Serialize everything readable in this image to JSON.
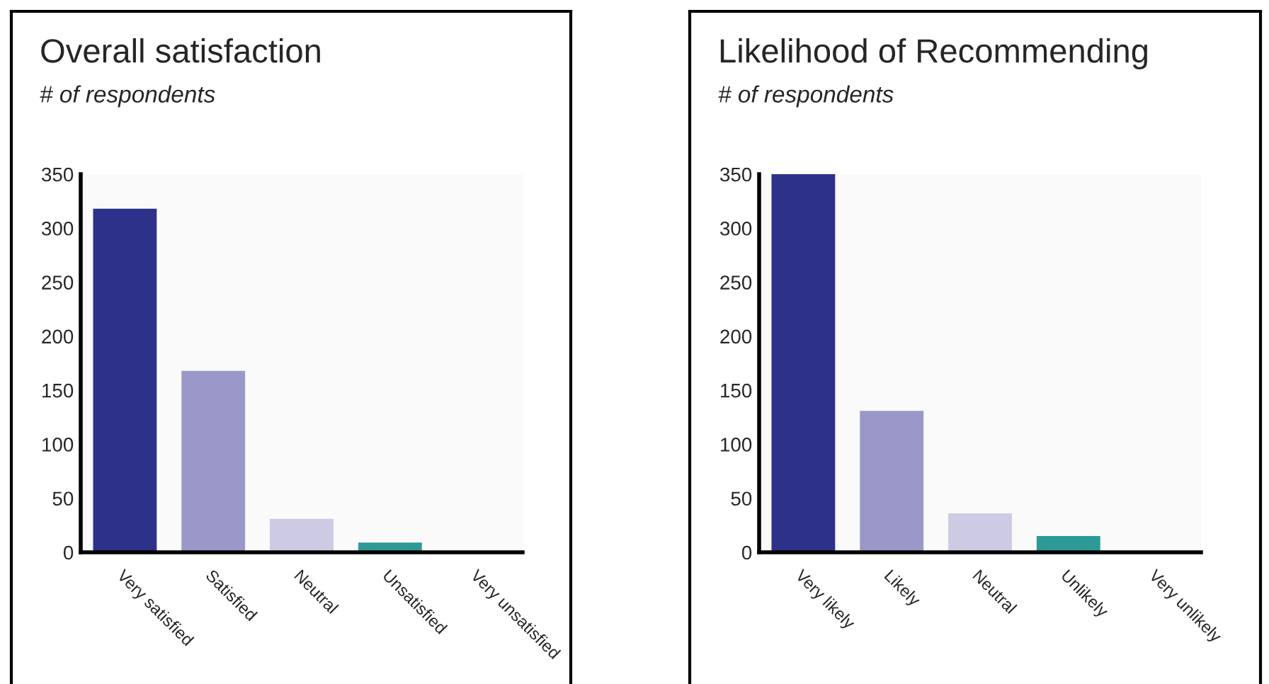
{
  "chart_data": [
    {
      "type": "bar",
      "title": "Overall satisfaction",
      "subtitle": "# of respondents",
      "categories": [
        "Very satisfied",
        "Satisfied",
        "Neutral",
        "Unsatisfied",
        "Very unsatisfied"
      ],
      "values": [
        318,
        168,
        31,
        9,
        0
      ],
      "colors": [
        "#2e318a",
        "#9a98c8",
        "#cdcbe3",
        "#2e9a98",
        "#2e9a98"
      ],
      "ylim": [
        0,
        350
      ],
      "yticks": [
        0,
        50,
        100,
        150,
        200,
        250,
        300,
        350
      ],
      "grid": false
    },
    {
      "type": "bar",
      "title": "Likelihood of Recommending",
      "subtitle": "# of respondents",
      "categories": [
        "Very likely",
        "Likely",
        "Neutral",
        "Unlikely",
        "Very unlikely"
      ],
      "values": [
        350,
        131,
        36,
        15,
        0
      ],
      "colors": [
        "#2e318a",
        "#9a98c8",
        "#cdcbe3",
        "#2e9a98",
        "#2e9a98"
      ],
      "ylim": [
        0,
        350
      ],
      "yticks": [
        0,
        50,
        100,
        150,
        200,
        250,
        300,
        350
      ],
      "grid": false
    }
  ]
}
